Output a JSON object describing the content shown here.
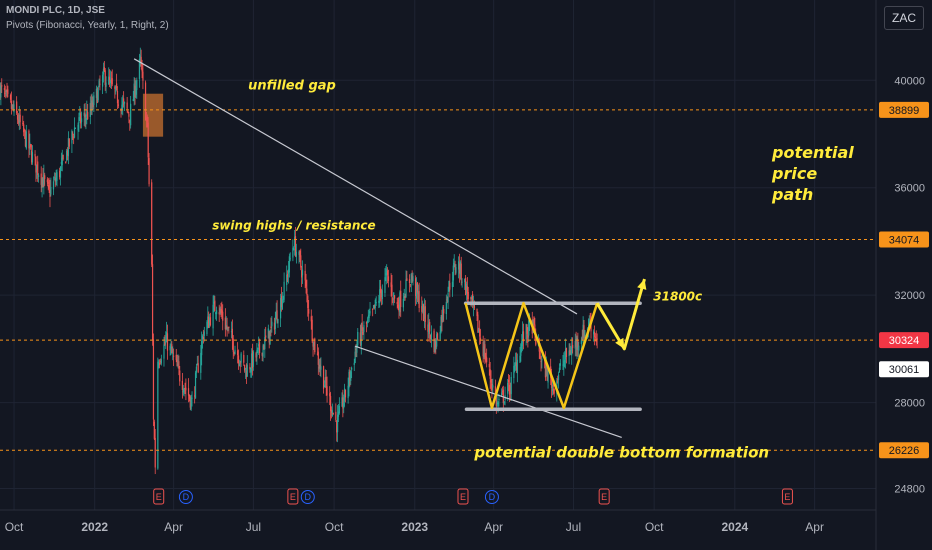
{
  "header": {
    "title": "MONDI PLC, 1D, JSE",
    "indicator": "Pivots (Fibonacci, Yearly, 1, Right, 2)",
    "currency_button": "ZAC"
  },
  "chart_data": {
    "type": "candlestick",
    "x_range": [
      "2021-09-15",
      "2024-06-10"
    ],
    "y_scale": "linear",
    "ylim": [
      24000,
      41500
    ],
    "grid": true,
    "y_ticks": [
      24800,
      28000,
      32000,
      36000,
      40000
    ],
    "x_ticks": [
      {
        "date": "2021-10-01",
        "label": "Oct",
        "bold": false
      },
      {
        "date": "2022-01-01",
        "label": "2022",
        "bold": true
      },
      {
        "date": "2022-04-01",
        "label": "Apr",
        "bold": false
      },
      {
        "date": "2022-07-01",
        "label": "Jul",
        "bold": false
      },
      {
        "date": "2022-10-01",
        "label": "Oct",
        "bold": false
      },
      {
        "date": "2023-01-01",
        "label": "2023",
        "bold": true
      },
      {
        "date": "2023-04-01",
        "label": "Apr",
        "bold": false
      },
      {
        "date": "2023-07-01",
        "label": "Jul",
        "bold": false
      },
      {
        "date": "2023-10-01",
        "label": "Oct",
        "bold": false
      },
      {
        "date": "2024-01-01",
        "label": "2024",
        "bold": true
      },
      {
        "date": "2024-04-01",
        "label": "Apr",
        "bold": false
      }
    ],
    "pivot_levels": [
      {
        "value": 38899,
        "label": "38899"
      },
      {
        "value": 34074,
        "label": "34074"
      },
      {
        "value": 30324,
        "label": "30324"
      },
      {
        "value": 26226,
        "label": "26226"
      }
    ],
    "price_labels": [
      {
        "value": 30324,
        "label": "30324",
        "kind": "last"
      },
      {
        "value": 30061,
        "label": "30061",
        "kind": "marker"
      }
    ],
    "price_path": [
      [
        "2021-09-15",
        39700
      ],
      [
        "2021-10-05",
        38600
      ],
      [
        "2021-10-25",
        36900
      ],
      [
        "2021-11-10",
        35800
      ],
      [
        "2021-11-25",
        36800
      ],
      [
        "2021-12-10",
        38300
      ],
      [
        "2021-12-28",
        38900
      ],
      [
        "2022-01-12",
        40200
      ],
      [
        "2022-01-28",
        39300
      ],
      [
        "2022-02-10",
        38700
      ],
      [
        "2022-02-22",
        40700
      ],
      [
        "2022-03-02",
        38200
      ],
      [
        "2022-03-07",
        33000
      ],
      [
        "2022-03-09",
        27500
      ],
      [
        "2022-03-11",
        25700
      ],
      [
        "2022-03-14",
        29600
      ],
      [
        "2022-03-24",
        30300
      ],
      [
        "2022-04-08",
        29000
      ],
      [
        "2022-04-22",
        28000
      ],
      [
        "2022-05-05",
        30600
      ],
      [
        "2022-05-20",
        31700
      ],
      [
        "2022-06-08",
        30200
      ],
      [
        "2022-06-22",
        29200
      ],
      [
        "2022-07-06",
        29800
      ],
      [
        "2022-07-22",
        30700
      ],
      [
        "2022-08-05",
        32200
      ],
      [
        "2022-08-16",
        34000
      ],
      [
        "2022-08-28",
        32600
      ],
      [
        "2022-09-08",
        30200
      ],
      [
        "2022-09-22",
        28500
      ],
      [
        "2022-10-04",
        27200
      ],
      [
        "2022-10-14",
        28300
      ],
      [
        "2022-10-28",
        30300
      ],
      [
        "2022-11-14",
        31300
      ],
      [
        "2022-11-30",
        32700
      ],
      [
        "2022-12-12",
        31600
      ],
      [
        "2022-12-28",
        32700
      ],
      [
        "2023-01-10",
        31400
      ],
      [
        "2023-01-24",
        30100
      ],
      [
        "2023-02-07",
        32100
      ],
      [
        "2023-02-18",
        33300
      ],
      [
        "2023-02-28",
        32300
      ],
      [
        "2023-03-10",
        31300
      ],
      [
        "2023-03-24",
        29500
      ],
      [
        "2023-04-05",
        27900
      ],
      [
        "2023-04-20",
        28600
      ],
      [
        "2023-05-04",
        30400
      ],
      [
        "2023-05-15",
        30900
      ],
      [
        "2023-05-26",
        29500
      ],
      [
        "2023-06-08",
        28600
      ],
      [
        "2023-06-22",
        29700
      ],
      [
        "2023-07-06",
        30300
      ],
      [
        "2023-07-20",
        31000
      ],
      [
        "2023-07-28",
        30324
      ]
    ],
    "trendlines": [
      {
        "from": [
          "2022-02-15",
          40800
        ],
        "to": [
          "2023-07-05",
          31300
        ]
      },
      {
        "from": [
          "2022-10-25",
          30100
        ],
        "to": [
          "2023-08-25",
          26700
        ]
      }
    ],
    "zones": [
      {
        "name": "gap",
        "from": [
          "2022-02-25",
          39500
        ],
        "to": [
          "2022-03-20",
          37900
        ]
      }
    ],
    "double_bottom": {
      "top_line": [
        "2023-02-28",
        "2023-09-15",
        31700
      ],
      "bottom_line": [
        "2023-03-01",
        "2023-09-15",
        27750
      ],
      "path": [
        [
          "2023-02-28",
          31700
        ],
        [
          "2023-03-30",
          27800
        ],
        [
          "2023-05-05",
          31700
        ],
        [
          "2023-06-20",
          27800
        ],
        [
          "2023-07-28",
          31700
        ]
      ],
      "projection": [
        [
          "2023-07-28",
          31700
        ],
        [
          "2023-08-28",
          30000
        ],
        [
          "2023-09-20",
          32600
        ]
      ]
    },
    "annotations": [
      {
        "text": "unfilled gap",
        "at": [
          "2022-06-25",
          39650
        ]
      },
      {
        "text": "swing highs / resistance",
        "at": [
          "2022-05-15",
          34450
        ]
      },
      {
        "text": "31800c",
        "at": [
          "2023-09-30",
          31800
        ]
      },
      {
        "text": "potential double bottom formation",
        "at": [
          "2023-03-10",
          25950
        ]
      }
    ],
    "side_note": [
      "potential",
      "price",
      "path"
    ],
    "event_markers": [
      {
        "date": "2022-03-15",
        "type": "E"
      },
      {
        "date": "2022-04-15",
        "type": "D"
      },
      {
        "date": "2022-08-15",
        "type": "E"
      },
      {
        "date": "2022-09-01",
        "type": "D"
      },
      {
        "date": "2023-02-25",
        "type": "E"
      },
      {
        "date": "2023-03-30",
        "type": "D"
      },
      {
        "date": "2023-08-05",
        "type": "E"
      },
      {
        "date": "2024-03-01",
        "type": "E"
      }
    ],
    "colors": {
      "up": "#26a69a",
      "down": "#ef5350",
      "pivot": "#f7931a",
      "annotation": "#ffeb3b",
      "trend": "#c7c9d1",
      "gap": "#b2652d",
      "last": "#f23645",
      "grid": "#1f2433"
    }
  }
}
